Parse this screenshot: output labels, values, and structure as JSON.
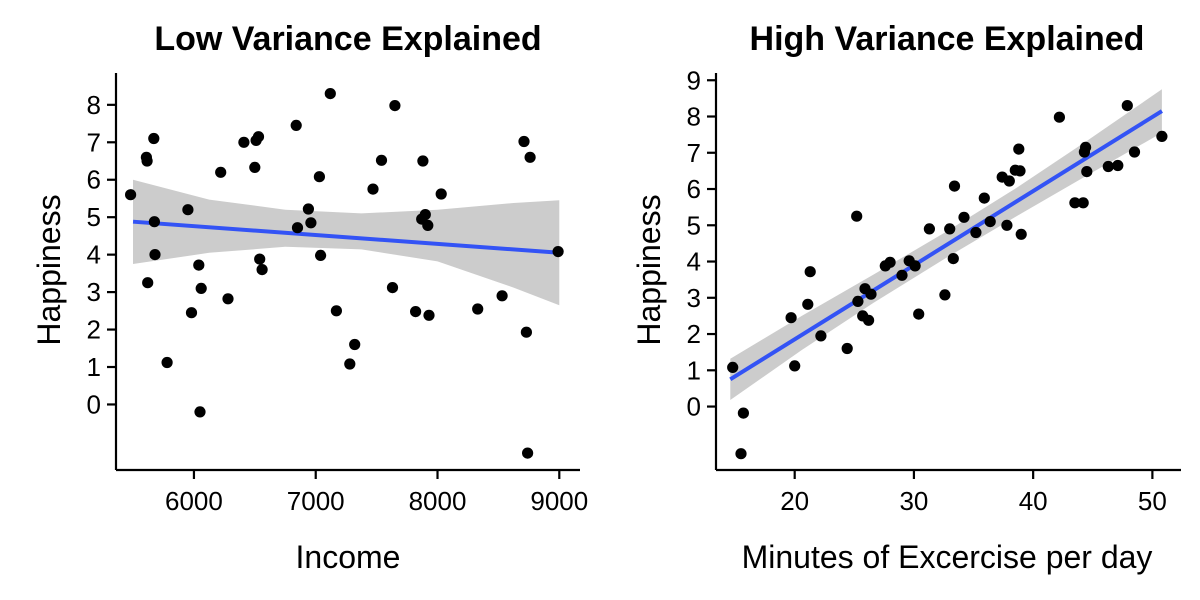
{
  "chart_data": [
    {
      "type": "scatter",
      "title": "Low Variance Explained",
      "xlabel": "Income",
      "ylabel": "Happiness",
      "xlim": [
        5360,
        9170
      ],
      "ylim": [
        -1.75,
        8.85
      ],
      "xticks": [
        6000,
        7000,
        8000,
        9000
      ],
      "yticks": [
        0,
        1,
        2,
        3,
        4,
        5,
        6,
        7,
        8
      ],
      "grid": false,
      "legend": "none",
      "point_color": "#000000",
      "fit": {
        "method": "lm",
        "color": "#3353f5",
        "band_color": "#cccccc",
        "x": [
          5500,
          9000
        ],
        "y": [
          4.88,
          4.05
        ],
        "band_low": [
          3.75,
          2.65
        ],
        "band_high": [
          6.0,
          5.45
        ],
        "band_x": [
          5500,
          6125,
          6750,
          7375,
          8000,
          8625,
          9000
        ],
        "band_lower": [
          3.75,
          4.05,
          4.21,
          4.14,
          3.82,
          3.12,
          2.65
        ],
        "band_upper": [
          6.0,
          5.47,
          5.2,
          5.1,
          5.2,
          5.38,
          5.45
        ]
      },
      "points": [
        {
          "x": 5480,
          "y": 5.6
        },
        {
          "x": 5610,
          "y": 6.6
        },
        {
          "x": 5615,
          "y": 6.5
        },
        {
          "x": 5620,
          "y": 3.25
        },
        {
          "x": 5670,
          "y": 7.1
        },
        {
          "x": 5675,
          "y": 4.88
        },
        {
          "x": 5680,
          "y": 4.0
        },
        {
          "x": 5780,
          "y": 1.12
        },
        {
          "x": 5950,
          "y": 5.2
        },
        {
          "x": 5980,
          "y": 2.45
        },
        {
          "x": 6040,
          "y": 3.72
        },
        {
          "x": 6050,
          "y": -0.2
        },
        {
          "x": 6060,
          "y": 3.1
        },
        {
          "x": 6220,
          "y": 6.2
        },
        {
          "x": 6280,
          "y": 2.82
        },
        {
          "x": 6410,
          "y": 7.0
        },
        {
          "x": 6500,
          "y": 6.33
        },
        {
          "x": 6510,
          "y": 7.05
        },
        {
          "x": 6530,
          "y": 7.15
        },
        {
          "x": 6540,
          "y": 3.88
        },
        {
          "x": 6560,
          "y": 3.6
        },
        {
          "x": 6840,
          "y": 7.45
        },
        {
          "x": 6850,
          "y": 4.72
        },
        {
          "x": 6940,
          "y": 5.22
        },
        {
          "x": 6960,
          "y": 4.85
        },
        {
          "x": 7030,
          "y": 6.08
        },
        {
          "x": 7040,
          "y": 3.98
        },
        {
          "x": 7120,
          "y": 8.3
        },
        {
          "x": 7170,
          "y": 2.5
        },
        {
          "x": 7280,
          "y": 1.08
        },
        {
          "x": 7320,
          "y": 1.6
        },
        {
          "x": 7470,
          "y": 5.75
        },
        {
          "x": 7540,
          "y": 6.52
        },
        {
          "x": 7630,
          "y": 3.12
        },
        {
          "x": 7650,
          "y": 7.98
        },
        {
          "x": 7820,
          "y": 2.48
        },
        {
          "x": 7870,
          "y": 4.95
        },
        {
          "x": 7880,
          "y": 6.5
        },
        {
          "x": 7900,
          "y": 5.07
        },
        {
          "x": 7920,
          "y": 4.78
        },
        {
          "x": 7930,
          "y": 2.38
        },
        {
          "x": 8030,
          "y": 5.62
        },
        {
          "x": 8330,
          "y": 2.55
        },
        {
          "x": 8530,
          "y": 2.9
        },
        {
          "x": 8710,
          "y": 7.02
        },
        {
          "x": 8730,
          "y": 1.93
        },
        {
          "x": 8740,
          "y": -1.3
        },
        {
          "x": 8760,
          "y": 6.6
        },
        {
          "x": 8990,
          "y": 4.08
        }
      ]
    },
    {
      "type": "scatter",
      "title": "High Variance Explained",
      "xlabel": "Minutes of Excercise per day",
      "ylabel": "Happiness",
      "xlim": [
        13.4,
        52.4
      ],
      "ylim": [
        -1.75,
        9.2
      ],
      "xticks": [
        20,
        30,
        40,
        50
      ],
      "yticks": [
        0,
        1,
        2,
        3,
        4,
        5,
        6,
        7,
        8,
        9
      ],
      "grid": false,
      "legend": "none",
      "point_color": "#000000",
      "fit": {
        "method": "lm",
        "color": "#3353f5",
        "band_color": "#cccccc",
        "x": [
          14.6,
          50.8
        ],
        "y": [
          0.75,
          8.15
        ],
        "band_low": [
          0.18,
          7.55
        ],
        "band_high": [
          1.32,
          8.75
        ],
        "band_x": [
          14.6,
          20.6,
          26.6,
          32.6,
          38.6,
          44.6,
          50.8
        ],
        "band_lower": [
          0.18,
          1.56,
          2.86,
          4.08,
          5.25,
          6.39,
          7.55
        ],
        "band_upper": [
          1.32,
          2.5,
          3.64,
          4.8,
          6.03,
          7.35,
          8.75
        ]
      },
      "points": [
        {
          "x": 14.8,
          "y": 1.08
        },
        {
          "x": 15.5,
          "y": -1.3
        },
        {
          "x": 15.7,
          "y": -0.18
        },
        {
          "x": 19.7,
          "y": 2.45
        },
        {
          "x": 20.0,
          "y": 1.12
        },
        {
          "x": 21.1,
          "y": 2.82
        },
        {
          "x": 21.3,
          "y": 3.72
        },
        {
          "x": 22.2,
          "y": 1.95
        },
        {
          "x": 24.4,
          "y": 1.6
        },
        {
          "x": 25.2,
          "y": 5.25
        },
        {
          "x": 25.3,
          "y": 2.9
        },
        {
          "x": 25.7,
          "y": 2.5
        },
        {
          "x": 25.9,
          "y": 3.25
        },
        {
          "x": 26.2,
          "y": 2.38
        },
        {
          "x": 26.4,
          "y": 3.1
        },
        {
          "x": 27.6,
          "y": 3.88
        },
        {
          "x": 28.0,
          "y": 3.98
        },
        {
          "x": 29.0,
          "y": 3.62
        },
        {
          "x": 29.6,
          "y": 4.02
        },
        {
          "x": 30.1,
          "y": 3.88
        },
        {
          "x": 30.4,
          "y": 2.55
        },
        {
          "x": 31.3,
          "y": 4.9
        },
        {
          "x": 32.6,
          "y": 3.08
        },
        {
          "x": 33.0,
          "y": 4.9
        },
        {
          "x": 33.3,
          "y": 4.08
        },
        {
          "x": 33.4,
          "y": 6.08
        },
        {
          "x": 34.2,
          "y": 5.22
        },
        {
          "x": 35.2,
          "y": 4.8
        },
        {
          "x": 35.9,
          "y": 5.75
        },
        {
          "x": 36.4,
          "y": 5.1
        },
        {
          "x": 37.4,
          "y": 6.33
        },
        {
          "x": 37.8,
          "y": 5.0
        },
        {
          "x": 38.0,
          "y": 6.22
        },
        {
          "x": 38.5,
          "y": 6.52
        },
        {
          "x": 38.8,
          "y": 7.1
        },
        {
          "x": 38.9,
          "y": 6.5
        },
        {
          "x": 39.0,
          "y": 4.75
        },
        {
          "x": 42.2,
          "y": 7.98
        },
        {
          "x": 43.5,
          "y": 5.62
        },
        {
          "x": 44.2,
          "y": 5.62
        },
        {
          "x": 44.3,
          "y": 7.02
        },
        {
          "x": 44.4,
          "y": 7.15
        },
        {
          "x": 44.5,
          "y": 6.48
        },
        {
          "x": 46.3,
          "y": 6.62
        },
        {
          "x": 47.1,
          "y": 6.65
        },
        {
          "x": 47.9,
          "y": 8.3
        },
        {
          "x": 48.5,
          "y": 7.02
        },
        {
          "x": 50.8,
          "y": 7.45
        }
      ]
    }
  ]
}
